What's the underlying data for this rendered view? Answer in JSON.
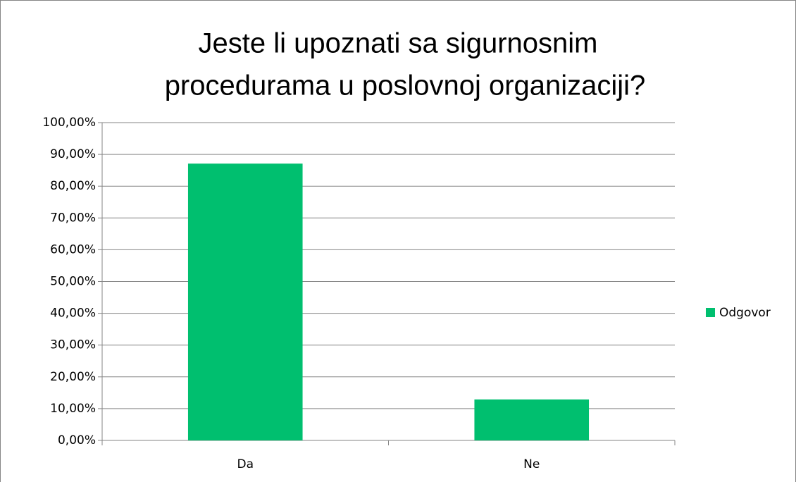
{
  "chart_data": {
    "type": "bar",
    "title": [
      "Jeste li upoznati sa sigurnosnim",
      "procedurama u poslovnoj organizaciji?"
    ],
    "categories": [
      "Da",
      "Ne"
    ],
    "series": [
      {
        "name": "Odgovor",
        "color": "#00bf6f",
        "values": [
          87.1,
          12.9
        ]
      }
    ],
    "ylim": [
      0,
      100
    ],
    "yticks": [
      {
        "value": 0,
        "label": "0,00%"
      },
      {
        "value": 10,
        "label": "10,00%"
      },
      {
        "value": 20,
        "label": "20,00%"
      },
      {
        "value": 30,
        "label": "30,00%"
      },
      {
        "value": 40,
        "label": "40,00%"
      },
      {
        "value": 50,
        "label": "50,00%"
      },
      {
        "value": 60,
        "label": "60,00%"
      },
      {
        "value": 70,
        "label": "70,00%"
      },
      {
        "value": 80,
        "label": "80,00%"
      },
      {
        "value": 90,
        "label": "90,00%"
      },
      {
        "value": 100,
        "label": "100,00%"
      }
    ],
    "grid": true,
    "legend": "right"
  }
}
